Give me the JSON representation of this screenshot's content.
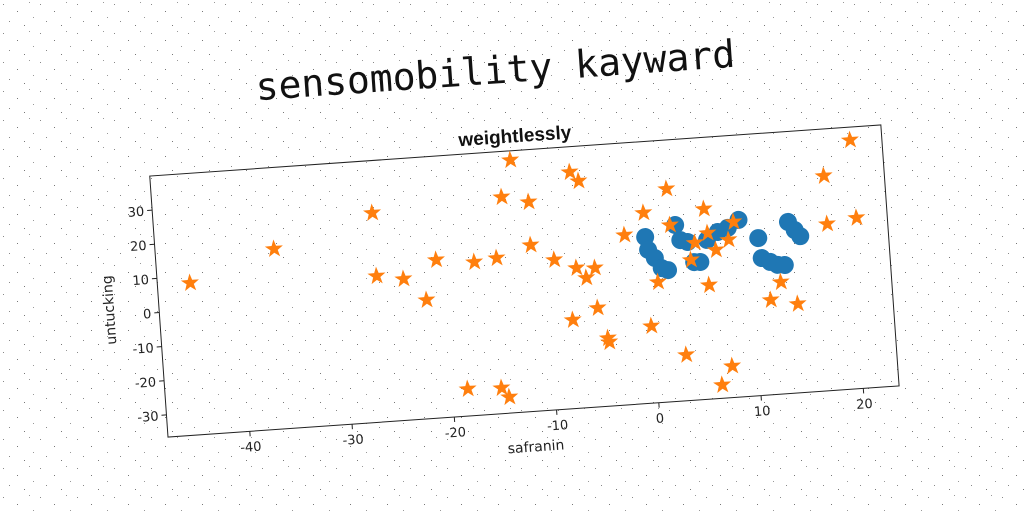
{
  "chart_data": {
    "type": "scatter",
    "title": "sensomobility kayward",
    "subtitle": "weightlessly",
    "xlabel": "safranin",
    "ylabel": "untucking",
    "xlim": [
      -48,
      23.5
    ],
    "ylim": [
      -36.5,
      40
    ],
    "xticks": [
      -40,
      -30,
      -20,
      -10,
      0,
      10,
      20
    ],
    "yticks": [
      -30,
      -20,
      -10,
      0,
      10,
      20,
      30
    ],
    "series": [
      {
        "color": "#1f77b4",
        "marker": "circle",
        "x": [
          -0.2,
          0,
          0.6,
          1.2,
          1.8,
          2.8,
          3.2,
          3.9,
          4.4,
          5.0,
          5.8,
          6.9,
          7.9,
          9.0,
          10.8,
          11.0,
          11.8,
          12.5,
          13.2,
          13.8,
          14.4,
          14.9
        ],
        "y": [
          12.1,
          8.3,
          5.8,
          2.7,
          2.0,
          15.0,
          10.5,
          9.8,
          3.8,
          3.7,
          10.0,
          12.1,
          13.1,
          15.2,
          9.5,
          3.6,
          2.3,
          1.3,
          1.1,
          13.6,
          11.1,
          9.2
        ]
      },
      {
        "color": "#ff7f0e",
        "marker": "star",
        "x": [
          -44.8,
          -36.4,
          -26.6,
          -26.6,
          -24.0,
          -21.9,
          -20.7,
          -18.5,
          -17.0,
          -14.8,
          -13.9,
          -12.8,
          -15.2,
          -14.5,
          -11.3,
          -11.4,
          -9.2,
          -7.1,
          -6.3,
          -7.8,
          -7.1,
          -6.2,
          -5.3,
          -5.3,
          -4.5,
          -4.4,
          -2.2,
          -0.2,
          -0.2,
          0.75,
          2.2,
          2.3,
          3.0,
          4.1,
          4.6,
          5.7,
          5.9,
          5.7,
          6.6,
          6.3,
          7.9,
          7.4,
          8.5,
          11.6,
          12.7,
          14.2,
          17.6,
          17.6,
          20.4,
          20.5
        ],
        "y": [
          8.0,
          16.2,
          24.7,
          6.2,
          4.8,
          -1.8,
          9.7,
          -28.6,
          8.3,
          9.0,
          26.7,
          37.3,
          -29.0,
          -31.8,
          24.7,
          12.1,
          7.3,
          32.6,
          29.8,
          -10.6,
          4.5,
          1.4,
          4.1,
          -7.6,
          -16.6,
          -17.8,
          13.1,
          19.2,
          -14.0,
          -1.3,
          25.7,
          15.1,
          -23.1,
          4.5,
          9.4,
          19.1,
          12.0,
          -3.2,
          6.9,
          -32.6,
          9.6,
          -27.3,
          14.7,
          -8.8,
          -3.8,
          -10.5,
          26.3,
          12.2,
          36.2,
          13.4
        ]
      }
    ]
  }
}
